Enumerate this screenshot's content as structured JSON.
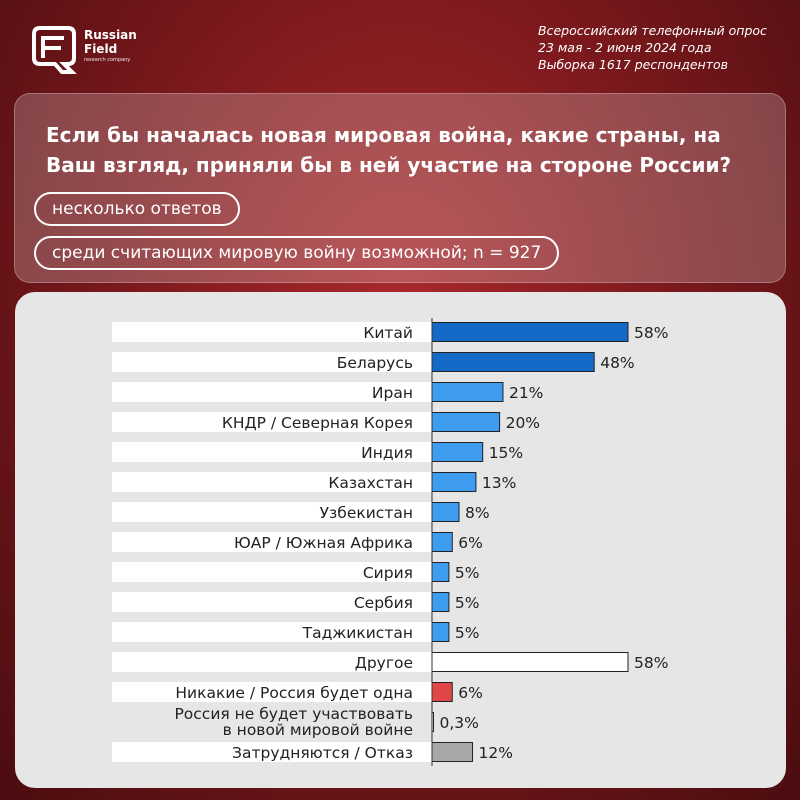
{
  "brand": {
    "name_line1": "Russian",
    "name_line2": "Field",
    "tagline": "research company",
    "logo_icon": "russian-field-logo"
  },
  "survey": {
    "line1": "Всероссийский телефонный опрос",
    "line2": "23 мая - 2 июня 2024 года",
    "line3": "Выборка 1617 респондентов"
  },
  "question": "Если бы началась новая мировая война, какие страны, на Ваш взгляд, приняли бы в ней участие на стороне России?",
  "notes": {
    "multiple": "несколько ответов",
    "base": "среди считающих мировую войну возможной; n = 927"
  },
  "chart_data": {
    "type": "bar",
    "orientation": "horizontal",
    "value_suffix": "%",
    "categories": [
      "Китай",
      "Беларусь",
      "Иран",
      "КНДР / Северная Корея",
      "Индия",
      "Казахстан",
      "Узбекистан",
      "ЮАР / Южная Африка",
      "Сирия",
      "Сербия",
      "Таджикистан",
      "Другое",
      "Никакие / Россия будет одна",
      "Россия не будет участвовать в новой мировой войне",
      "Затрудняются / Отказ"
    ],
    "category_lines": [
      [
        "Китай"
      ],
      [
        "Беларусь"
      ],
      [
        "Иран"
      ],
      [
        "КНДР / Северная Корея"
      ],
      [
        "Индия"
      ],
      [
        "Казахстан"
      ],
      [
        "Узбекистан"
      ],
      [
        "ЮАР / Южная Африка"
      ],
      [
        "Сирия"
      ],
      [
        "Сербия"
      ],
      [
        "Таджикистан"
      ],
      [
        "Другое"
      ],
      [
        "Никакие / Россия будет одна"
      ],
      [
        "Россия не будет участвовать",
        "в новой мировой войне"
      ],
      [
        "Затрудняются / Отказ"
      ]
    ],
    "values": [
      58,
      48,
      21,
      20,
      15,
      13,
      8,
      6,
      5,
      5,
      5,
      58,
      6,
      0.3,
      12
    ],
    "value_labels": [
      "58%",
      "48%",
      "21%",
      "20%",
      "15%",
      "13%",
      "8%",
      "6%",
      "5%",
      "5%",
      "5%",
      "58%",
      "6%",
      "0,3%",
      "12%"
    ],
    "bar_colors": [
      "#1569c7",
      "#1569c7",
      "#3d9cf0",
      "#3d9cf0",
      "#3d9cf0",
      "#3d9cf0",
      "#3d9cf0",
      "#3d9cf0",
      "#3d9cf0",
      "#3d9cf0",
      "#3d9cf0",
      "#ffffff",
      "#e04848",
      "#ffffff",
      "#a8a8a8"
    ],
    "xlim": [
      0,
      58
    ],
    "grid": false,
    "legend": "none"
  }
}
